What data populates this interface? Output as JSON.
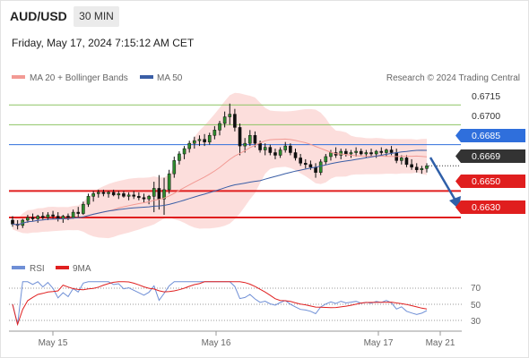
{
  "header": {
    "symbol": "AUD/USD",
    "timeframe": "30 MIN",
    "timestamp": "Friday, May 17, 2024 7:15:12 AM CET"
  },
  "legend": {
    "ma20_label": "MA 20 + Bollinger Bands",
    "ma50_label": "MA 50",
    "credit": "Research © 2024 Trading Central",
    "ma20_color": "#f29a94",
    "ma50_color": "#3a5ea6"
  },
  "rsi_legend": {
    "rsi_label": "RSI",
    "ma_label": "9MA",
    "rsi_color": "#6f8fd6",
    "ma_color": "#e02020"
  },
  "price_levels": [
    {
      "value": "0.6715",
      "kind": "target",
      "color": "#8dc463"
    },
    {
      "value": "0.6700",
      "kind": "target",
      "color": "#8dc463"
    },
    {
      "value": "0.6685",
      "kind": "pivot",
      "color": "#2f6fdc"
    },
    {
      "value": "0.6669",
      "kind": "last",
      "color": "#333333"
    },
    {
      "value": "0.6650",
      "kind": "support",
      "color": "#e01e1e"
    },
    {
      "value": "0.6630",
      "kind": "support",
      "color": "#e01e1e"
    }
  ],
  "rsi_axis": [
    "70",
    "50",
    "30"
  ],
  "x_axis": [
    "May 15",
    "May 16",
    "May 17",
    "May 21"
  ],
  "chart_data": {
    "type": "candlestick",
    "ylim": [
      0.6605,
      0.6728
    ],
    "candles": [
      [
        0.6628,
        0.6631,
        0.6623,
        0.6625
      ],
      [
        0.6625,
        0.6628,
        0.6621,
        0.6624
      ],
      [
        0.6624,
        0.6629,
        0.6622,
        0.6628
      ],
      [
        0.6628,
        0.6632,
        0.6626,
        0.663
      ],
      [
        0.663,
        0.6633,
        0.6627,
        0.6629
      ],
      [
        0.6629,
        0.6632,
        0.6626,
        0.6631
      ],
      [
        0.6631,
        0.6634,
        0.6628,
        0.663
      ],
      [
        0.663,
        0.6634,
        0.6628,
        0.6632
      ],
      [
        0.6632,
        0.6635,
        0.6629,
        0.6631
      ],
      [
        0.6631,
        0.6634,
        0.6627,
        0.6629
      ],
      [
        0.6629,
        0.6632,
        0.6626,
        0.6631
      ],
      [
        0.6631,
        0.6633,
        0.6628,
        0.663
      ],
      [
        0.663,
        0.6636,
        0.6629,
        0.6634
      ],
      [
        0.6634,
        0.6638,
        0.663,
        0.6633
      ],
      [
        0.6633,
        0.6642,
        0.6632,
        0.664
      ],
      [
        0.664,
        0.6648,
        0.6638,
        0.6646
      ],
      [
        0.6646,
        0.665,
        0.6642,
        0.6648
      ],
      [
        0.6648,
        0.6651,
        0.6645,
        0.6649
      ],
      [
        0.6649,
        0.6651,
        0.6646,
        0.6648
      ],
      [
        0.6648,
        0.665,
        0.6645,
        0.6649
      ],
      [
        0.6649,
        0.6651,
        0.6646,
        0.6647
      ],
      [
        0.6647,
        0.665,
        0.6644,
        0.6648
      ],
      [
        0.6648,
        0.665,
        0.6645,
        0.6646
      ],
      [
        0.6646,
        0.6649,
        0.6643,
        0.6647
      ],
      [
        0.6647,
        0.665,
        0.6644,
        0.6646
      ],
      [
        0.6646,
        0.6649,
        0.6643,
        0.6645
      ],
      [
        0.6645,
        0.6648,
        0.6641,
        0.6644
      ],
      [
        0.6644,
        0.6647,
        0.664,
        0.6646
      ],
      [
        0.6646,
        0.6657,
        0.6634,
        0.6652
      ],
      [
        0.6652,
        0.6662,
        0.6636,
        0.6644
      ],
      [
        0.6644,
        0.666,
        0.6632,
        0.6651
      ],
      [
        0.6651,
        0.6666,
        0.6648,
        0.6663
      ],
      [
        0.6663,
        0.6676,
        0.666,
        0.6673
      ],
      [
        0.6673,
        0.668,
        0.667,
        0.6678
      ],
      [
        0.6678,
        0.6684,
        0.6674,
        0.6682
      ],
      [
        0.6682,
        0.6688,
        0.6679,
        0.6686
      ],
      [
        0.6686,
        0.6691,
        0.6682,
        0.6688
      ],
      [
        0.6688,
        0.6692,
        0.6684,
        0.6689
      ],
      [
        0.6689,
        0.6693,
        0.6684,
        0.6687
      ],
      [
        0.6687,
        0.6694,
        0.6685,
        0.6692
      ],
      [
        0.6692,
        0.6699,
        0.6689,
        0.6696
      ],
      [
        0.6696,
        0.6703,
        0.6692,
        0.6701
      ],
      [
        0.6701,
        0.671,
        0.6698,
        0.6706
      ],
      [
        0.6706,
        0.6716,
        0.67,
        0.6708
      ],
      [
        0.6708,
        0.6712,
        0.6695,
        0.6698
      ],
      [
        0.6698,
        0.6701,
        0.6677,
        0.6684
      ],
      [
        0.6684,
        0.669,
        0.6679,
        0.6686
      ],
      [
        0.6686,
        0.6696,
        0.6684,
        0.6692
      ],
      [
        0.6692,
        0.6695,
        0.6683,
        0.6686
      ],
      [
        0.6686,
        0.6688,
        0.6679,
        0.6681
      ],
      [
        0.6681,
        0.6686,
        0.6677,
        0.6683
      ],
      [
        0.6683,
        0.6685,
        0.6677,
        0.6679
      ],
      [
        0.6679,
        0.6682,
        0.6674,
        0.6677
      ],
      [
        0.6677,
        0.6683,
        0.6675,
        0.6681
      ],
      [
        0.6681,
        0.6687,
        0.6679,
        0.6684
      ],
      [
        0.6684,
        0.6686,
        0.6677,
        0.6679
      ],
      [
        0.6679,
        0.6682,
        0.6673,
        0.6675
      ],
      [
        0.6675,
        0.6678,
        0.6669,
        0.6671
      ],
      [
        0.6671,
        0.6674,
        0.6667,
        0.667
      ],
      [
        0.667,
        0.6673,
        0.6666,
        0.6668
      ],
      [
        0.6668,
        0.6671,
        0.666,
        0.6664
      ],
      [
        0.6664,
        0.6674,
        0.6662,
        0.6672
      ],
      [
        0.6672,
        0.6678,
        0.667,
        0.6676
      ],
      [
        0.6676,
        0.6681,
        0.6673,
        0.6679
      ],
      [
        0.6679,
        0.6683,
        0.6675,
        0.6677
      ],
      [
        0.6677,
        0.6682,
        0.6674,
        0.668
      ],
      [
        0.668,
        0.6682,
        0.6676,
        0.6678
      ],
      [
        0.6678,
        0.6681,
        0.6675,
        0.6679
      ],
      [
        0.6679,
        0.6683,
        0.6676,
        0.668
      ],
      [
        0.668,
        0.6682,
        0.6677,
        0.6678
      ],
      [
        0.6678,
        0.6681,
        0.6675,
        0.6679
      ],
      [
        0.6679,
        0.6682,
        0.6676,
        0.6678
      ],
      [
        0.6678,
        0.6681,
        0.6675,
        0.668
      ],
      [
        0.668,
        0.6683,
        0.6677,
        0.6679
      ],
      [
        0.6679,
        0.6682,
        0.6676,
        0.6681
      ],
      [
        0.6681,
        0.6684,
        0.6677,
        0.6679
      ],
      [
        0.6679,
        0.6682,
        0.6671,
        0.6673
      ],
      [
        0.6673,
        0.6677,
        0.667,
        0.6675
      ],
      [
        0.6675,
        0.6677,
        0.6668,
        0.667
      ],
      [
        0.667,
        0.6674,
        0.6666,
        0.6668
      ],
      [
        0.6668,
        0.6671,
        0.6664,
        0.6666
      ],
      [
        0.6666,
        0.6669,
        0.6663,
        0.6667
      ],
      [
        0.6667,
        0.6671,
        0.6664,
        0.6669
      ]
    ]
  }
}
